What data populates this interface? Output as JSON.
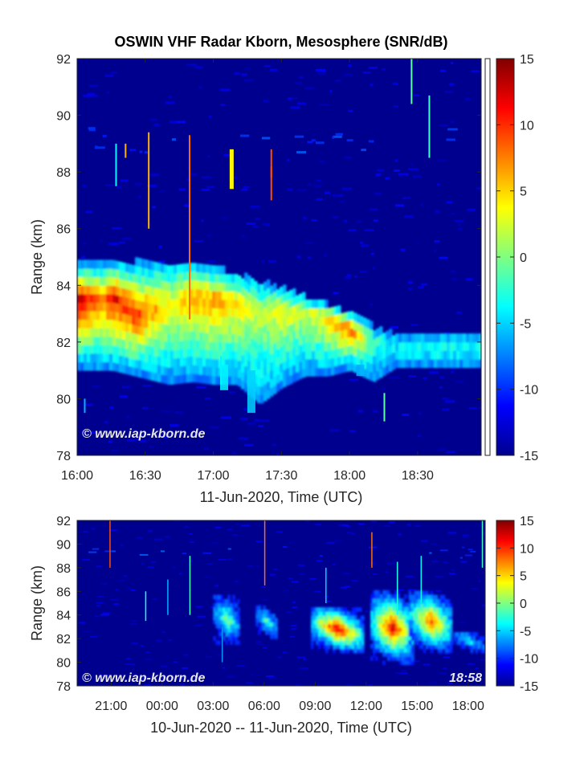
{
  "chart_data": [
    {
      "type": "heatmap",
      "title": "OSWIN VHF Radar Kborn, Mesosphere (SNR/dB)",
      "xlabel": "11-Jun-2020, Time (UTC)",
      "ylabel": "Range (km)",
      "x_ticks": [
        "16:00",
        "16:30",
        "17:00",
        "17:30",
        "18:00",
        "18:30"
      ],
      "y_ticks": [
        78,
        80,
        82,
        84,
        86,
        88,
        90,
        92
      ],
      "xlim": [
        "16:00",
        "18:58"
      ],
      "ylim": [
        78,
        92
      ],
      "colorbar": {
        "label": "SNR/dB",
        "ticks": [
          15,
          10,
          5,
          0,
          -5,
          -10,
          -15
        ],
        "range": [
          -15,
          15
        ],
        "colormap": "jet"
      },
      "watermark": "© www.iap-kborn.de",
      "echo_layer": [
        {
          "time": "16:00",
          "bottom_km": 81.0,
          "top_km": 84.6,
          "peak_km": 83.4,
          "peak_snr_db": 13
        },
        {
          "time": "16:10",
          "bottom_km": 81.0,
          "top_km": 84.6,
          "peak_km": 83.3,
          "peak_snr_db": 8
        },
        {
          "time": "16:15",
          "bottom_km": 81.0,
          "top_km": 84.7,
          "peak_km": 83.5,
          "peak_snr_db": 12
        },
        {
          "time": "16:25",
          "bottom_km": 80.8,
          "top_km": 84.7,
          "peak_km": 82.8,
          "peak_snr_db": 10
        },
        {
          "time": "16:40",
          "bottom_km": 80.5,
          "top_km": 84.7,
          "peak_km": 83.2,
          "peak_snr_db": 4
        },
        {
          "time": "16:50",
          "bottom_km": 80.6,
          "top_km": 84.7,
          "peak_km": 83.5,
          "peak_snr_db": 6
        },
        {
          "time": "17:00",
          "bottom_km": 80.5,
          "top_km": 84.5,
          "peak_km": 83.4,
          "peak_snr_db": 7
        },
        {
          "time": "17:10",
          "bottom_km": 80.5,
          "top_km": 84.3,
          "peak_km": 83.3,
          "peak_snr_db": 5
        },
        {
          "time": "17:20",
          "bottom_km": 79.8,
          "top_km": 84.0,
          "peak_km": 83.0,
          "peak_snr_db": 2
        },
        {
          "time": "17:30",
          "bottom_km": 80.4,
          "top_km": 83.8,
          "peak_km": 83.0,
          "peak_snr_db": 4
        },
        {
          "time": "17:40",
          "bottom_km": 80.8,
          "top_km": 83.5,
          "peak_km": 82.9,
          "peak_snr_db": 2
        },
        {
          "time": "17:50",
          "bottom_km": 80.8,
          "top_km": 83.2,
          "peak_km": 82.7,
          "peak_snr_db": 5
        },
        {
          "time": "18:00",
          "bottom_km": 81.0,
          "top_km": 82.9,
          "peak_km": 82.3,
          "peak_snr_db": 9
        },
        {
          "time": "18:10",
          "bottom_km": 80.6,
          "top_km": 82.4,
          "peak_km": 81.9,
          "peak_snr_db": -2
        },
        {
          "time": "18:20",
          "bottom_km": 81.1,
          "top_km": 82.1,
          "peak_km": 81.6,
          "peak_snr_db": -4
        },
        {
          "time": "18:30",
          "bottom_km": 81.1,
          "top_km": 82.1,
          "peak_km": 81.6,
          "peak_snr_db": -3
        },
        {
          "time": "18:40",
          "bottom_km": 81.1,
          "top_km": 82.1,
          "peak_km": 81.6,
          "peak_snr_db": -3
        },
        {
          "time": "18:50",
          "bottom_km": 81.1,
          "top_km": 82.1,
          "peak_km": 81.6,
          "peak_snr_db": -3
        }
      ]
    },
    {
      "type": "heatmap",
      "xlabel": "10-Jun-2020 -- 11-Jun-2020, Time (UTC)",
      "ylabel": "Range (km)",
      "x_ticks": [
        "21:00",
        "00:00",
        "03:00",
        "06:00",
        "09:00",
        "12:00",
        "15:00",
        "18:00"
      ],
      "y_ticks": [
        78,
        80,
        82,
        84,
        86,
        88,
        90,
        92
      ],
      "ylim": [
        78,
        92
      ],
      "colorbar": {
        "ticks": [
          15,
          10,
          5,
          0,
          -5,
          -10,
          -15
        ],
        "range": [
          -15,
          15
        ],
        "colormap": "jet"
      },
      "watermark": "© www.iap-kborn.de",
      "time_stamp": "18:58",
      "echo_patches": [
        {
          "time_start": "03:00",
          "time_end": "04:30",
          "top_km": 85.5,
          "bottom_km": 81.5,
          "peak_snr_db": 0
        },
        {
          "time_start": "05:30",
          "time_end": "06:45",
          "top_km": 84.5,
          "bottom_km": 82.0,
          "peak_snr_db": -1
        },
        {
          "time_start": "08:45",
          "time_end": "11:45",
          "top_km": 84.5,
          "bottom_km": 80.8,
          "peak_snr_db": 14
        },
        {
          "time_start": "12:15",
          "time_end": "14:45",
          "top_km": 85.8,
          "bottom_km": 79.8,
          "peak_snr_db": 13
        },
        {
          "time_start": "14:30",
          "time_end": "17:00",
          "top_km": 85.8,
          "bottom_km": 80.8,
          "peak_snr_db": 10
        },
        {
          "time_start": "17:00",
          "time_end": "18:58",
          "top_km": 82.5,
          "bottom_km": 80.8,
          "peak_snr_db": -4
        }
      ]
    }
  ]
}
